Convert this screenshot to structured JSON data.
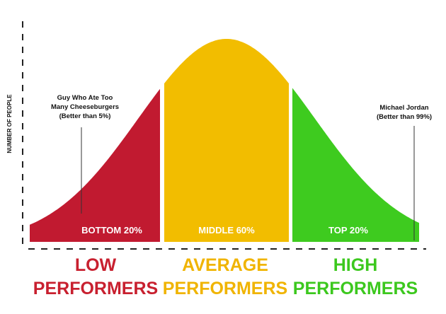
{
  "y_axis_label": "NUMBER OF PEOPLE",
  "segments": [
    {
      "label": "BOTTOM 20%",
      "group": [
        "LOW",
        "PERFORMERS"
      ],
      "color": "#c11a30",
      "text_color": "#c8202f"
    },
    {
      "label": "MIDDLE 60%",
      "group": [
        "AVERAGE",
        "PERFORMERS"
      ],
      "color": "#f2bd00",
      "text_color": "#f0b400"
    },
    {
      "label": "TOP 20%",
      "group": [
        "HIGH",
        "PERFORMERS"
      ],
      "color": "#3ecb1f",
      "text_color": "#3cc81e"
    }
  ],
  "annotations": [
    {
      "lines": [
        "Guy Who Ate Too",
        "Many Cheeseburgers",
        "(Better than 5%)"
      ]
    },
    {
      "lines": [
        "Michael Jordan",
        "(Better than 99%)"
      ]
    }
  ]
}
